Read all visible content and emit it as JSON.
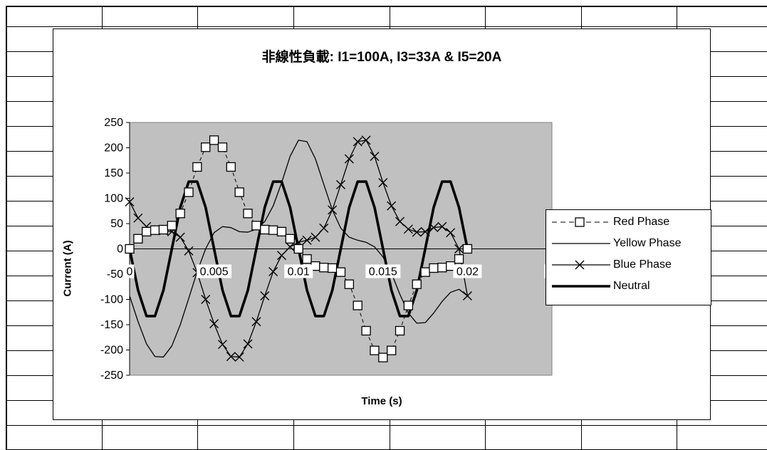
{
  "chart_data": {
    "type": "line",
    "title": "非線性負載: I1=100A, I3=33A & I5=20A",
    "xlabel": "Time (s)",
    "ylabel": "Current (A)",
    "xlim": [
      0,
      0.025
    ],
    "ylim": [
      -250,
      250
    ],
    "x_ticks": [
      "0",
      "0.005",
      "0.01",
      "0.015",
      "0.02",
      "0."
    ],
    "y_ticks": [
      "250",
      "200",
      "150",
      "100",
      "50",
      "0",
      "-50",
      "-100",
      "-150",
      "-200",
      "-250"
    ],
    "grid": false,
    "plot_background": "#c0c0c0",
    "legend_position": "right",
    "x": [
      0,
      0.0005,
      0.001,
      0.0015,
      0.002,
      0.0025,
      0.003,
      0.0035,
      0.004,
      0.0045,
      0.005,
      0.0055,
      0.006,
      0.0065,
      0.007,
      0.0075,
      0.008,
      0.0085,
      0.009,
      0.0095,
      0.01,
      0.0105,
      0.011,
      0.0115,
      0.012,
      0.0125,
      0.013,
      0.0135,
      0.014,
      0.0145,
      0.015,
      0.0155,
      0.016,
      0.0165,
      0.017,
      0.0175,
      0.018,
      0.0185,
      0.019,
      0.0195,
      0.02
    ],
    "series": [
      {
        "name": "Red Phase",
        "style": "dashed-square",
        "values": [
          0,
          20,
          34,
          37,
          38,
          46,
          70,
          112,
          162,
          201,
          215,
          201,
          162,
          112,
          70,
          46,
          38,
          37,
          34,
          20,
          0,
          -20,
          -34,
          -37,
          -38,
          -46,
          -70,
          -112,
          -162,
          -201,
          -215,
          -201,
          -162,
          -112,
          -70,
          -46,
          -38,
          -37,
          -34,
          -20,
          0
        ]
      },
      {
        "name": "Yellow Phase",
        "style": "thin",
        "values": [
          -93,
          -144,
          -188,
          -213,
          -214,
          -192,
          -150,
          -98,
          -45,
          0,
          32,
          44,
          42,
          34,
          33,
          39,
          54,
          85,
          131,
          183,
          215,
          212,
          178,
          127,
          77,
          41,
          23,
          17,
          13,
          4,
          -16,
          -48,
          -90,
          -127,
          -147,
          -146,
          -127,
          -104,
          -86,
          -80,
          -93
        ]
      },
      {
        "name": "Blue Phase",
        "style": "x-marker",
        "values": [
          93,
          61,
          44,
          37,
          36,
          34,
          23,
          -4,
          -47,
          -100,
          -148,
          -189,
          -213,
          -214,
          -188,
          -144,
          -93,
          -45,
          -13,
          4,
          13,
          17,
          23,
          41,
          77,
          127,
          178,
          212,
          215,
          183,
          131,
          85,
          54,
          39,
          33,
          34,
          42,
          44,
          32,
          0,
          -93
        ]
      },
      {
        "name": "Neutral",
        "style": "thick",
        "values": [
          0,
          -82,
          -133,
          -133,
          -82,
          0,
          82,
          133,
          133,
          82,
          0,
          -82,
          -133,
          -133,
          -82,
          0,
          82,
          133,
          133,
          82,
          0,
          -82,
          -133,
          -133,
          -82,
          0,
          82,
          133,
          133,
          82,
          0,
          -82,
          -133,
          -133,
          -82,
          0,
          82,
          133,
          133,
          82,
          0
        ]
      }
    ]
  }
}
